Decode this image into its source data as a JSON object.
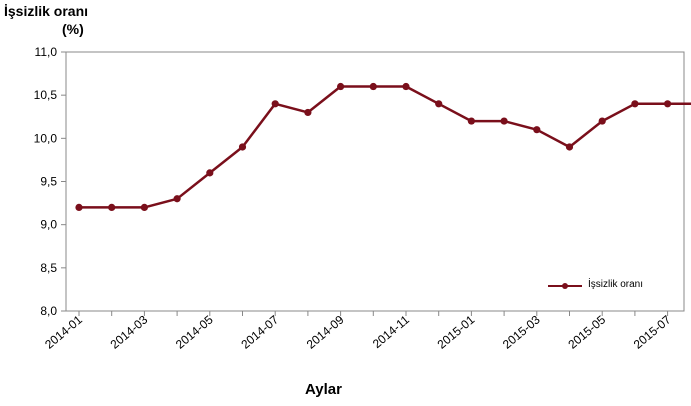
{
  "chart_data": {
    "type": "line",
    "title": "",
    "ylabel_line1": "İşsizlik oranı",
    "ylabel_line2": "(%)",
    "xlabel": "Aylar",
    "ylim": [
      8.0,
      11.0
    ],
    "yticks": [
      "8,0",
      "8,5",
      "9,0",
      "9,5",
      "10,0",
      "10,5",
      "11,0"
    ],
    "yticks_values": [
      8.0,
      8.5,
      9.0,
      9.5,
      10.0,
      10.5,
      11.0
    ],
    "grid": false,
    "legend_position": "bottom-right",
    "x": [
      "2014-01",
      "2014-02",
      "2014-03",
      "2014-04",
      "2014-05",
      "2014-06",
      "2014-07",
      "2014-08",
      "2014-09",
      "2014-10",
      "2014-11",
      "2014-12",
      "2015-01",
      "2015-02",
      "2015-03",
      "2015-04",
      "2015-05",
      "2015-06",
      "2015-07",
      "2015-08"
    ],
    "xtick_labels": [
      "2014-01",
      "2014-03",
      "2014-05",
      "2014-07",
      "2014-09",
      "2014-11",
      "2015-01",
      "2015-03",
      "2015-05",
      "2015-07"
    ],
    "series": [
      {
        "name": "İşsizlik oranı",
        "color": "#7a0f1b",
        "values": [
          9.2,
          9.2,
          9.2,
          9.3,
          9.6,
          9.9,
          10.4,
          10.3,
          10.6,
          10.6,
          10.6,
          10.4,
          10.2,
          10.2,
          10.1,
          9.9,
          10.2,
          10.4,
          10.4,
          10.4
        ]
      }
    ]
  }
}
